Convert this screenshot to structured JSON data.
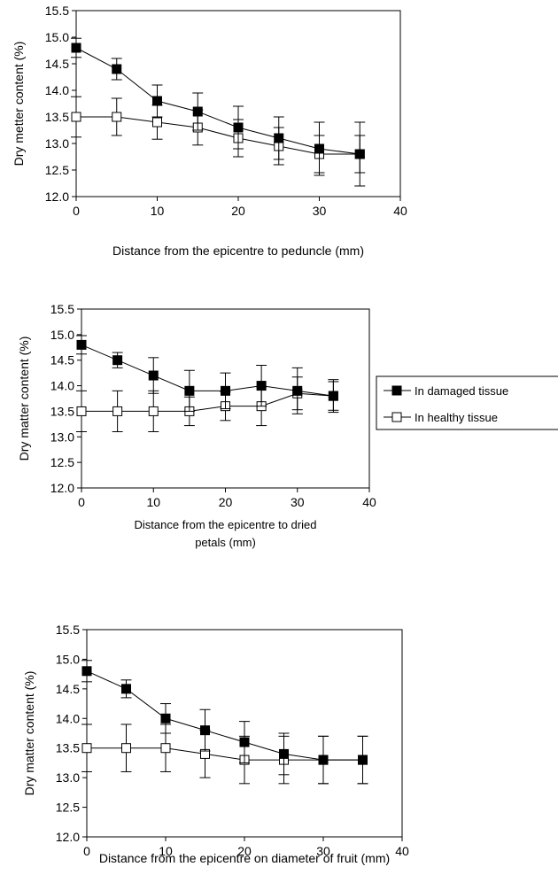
{
  "legend": {
    "entries": [
      {
        "label": "In damaged tissue",
        "marker": "filled-square"
      },
      {
        "label": "In healthy tissue",
        "marker": "open-square"
      }
    ]
  },
  "chart_data": [
    {
      "type": "line",
      "xlabel": "Distance from the epicentre to peduncle (mm)",
      "ylabel": "Dry metter content (%)",
      "xlim": [
        0,
        40
      ],
      "ylim": [
        12.0,
        15.5
      ],
      "xticks": [
        "0",
        "10",
        "20",
        "30",
        "40"
      ],
      "yticks": [
        "12.0",
        "12.5",
        "13.0",
        "13.5",
        "14.0",
        "14.5",
        "15.0",
        "15.5"
      ],
      "x": [
        0,
        5,
        10,
        15,
        20,
        25,
        30,
        35
      ],
      "series": [
        {
          "name": "In damaged tissue",
          "marker": "filled-square",
          "values": [
            14.8,
            14.4,
            13.8,
            13.6,
            13.3,
            13.1,
            12.9,
            12.8
          ],
          "errors": [
            0.18,
            0.2,
            0.3,
            0.35,
            0.4,
            0.4,
            0.5,
            0.6
          ]
        },
        {
          "name": "In healthy tissue",
          "marker": "open-square",
          "values": [
            13.5,
            13.5,
            13.4,
            13.3,
            13.1,
            12.95,
            12.8,
            12.8
          ],
          "errors": [
            0.38,
            0.35,
            0.32,
            0.33,
            0.35,
            0.35,
            0.35,
            0.35
          ]
        }
      ],
      "grid": false,
      "legend": "none"
    },
    {
      "type": "line",
      "xlabel": "Distance from the epicentre to dried petals (mm)",
      "ylabel": "Dry matter content (%)",
      "xlim": [
        0,
        40
      ],
      "ylim": [
        12.0,
        15.5
      ],
      "xticks": [
        "0",
        "10",
        "20",
        "30",
        "40"
      ],
      "yticks": [
        "12.0",
        "12.5",
        "13.0",
        "13.5",
        "14.0",
        "14.5",
        "15.0",
        "15.5"
      ],
      "x": [
        0,
        5,
        10,
        15,
        20,
        25,
        30,
        35
      ],
      "series": [
        {
          "name": "In damaged tissue",
          "marker": "filled-square",
          "values": [
            14.8,
            14.5,
            14.2,
            13.9,
            13.9,
            14.0,
            13.9,
            13.8
          ],
          "errors": [
            0.18,
            0.15,
            0.35,
            0.4,
            0.35,
            0.4,
            0.45,
            0.32
          ]
        },
        {
          "name": "In healthy tissue",
          "marker": "open-square",
          "values": [
            13.5,
            13.5,
            13.5,
            13.5,
            13.6,
            13.6,
            13.85,
            13.8
          ],
          "errors": [
            0.4,
            0.4,
            0.4,
            0.28,
            0.28,
            0.38,
            0.32,
            0.28
          ]
        }
      ],
      "grid": false,
      "legend": "right"
    },
    {
      "type": "line",
      "xlabel": "Distance from the epicentre on diameter of fruit (mm)",
      "ylabel": "Dry matter content (%)",
      "xlim": [
        0,
        40
      ],
      "ylim": [
        12.0,
        15.5
      ],
      "xticks": [
        "0",
        "10",
        "20",
        "30",
        "40"
      ],
      "yticks": [
        "12.0",
        "12.5",
        "13.0",
        "13.5",
        "14.0",
        "14.5",
        "15.0",
        "15.5"
      ],
      "x": [
        0,
        5,
        10,
        15,
        20,
        25,
        30,
        35
      ],
      "series": [
        {
          "name": "In damaged tissue",
          "marker": "filled-square",
          "values": [
            14.8,
            14.5,
            14.0,
            13.8,
            13.6,
            13.4,
            13.3,
            13.3
          ],
          "errors": [
            0.18,
            0.15,
            0.25,
            0.35,
            0.35,
            0.35,
            0.4,
            0.4
          ]
        },
        {
          "name": "In healthy tissue",
          "marker": "open-square",
          "values": [
            13.5,
            13.5,
            13.5,
            13.4,
            13.3,
            13.3,
            13.3,
            13.3
          ],
          "errors": [
            0.4,
            0.4,
            0.4,
            0.4,
            0.4,
            0.4,
            0.4,
            0.4
          ]
        }
      ],
      "grid": false,
      "legend": "none"
    }
  ]
}
